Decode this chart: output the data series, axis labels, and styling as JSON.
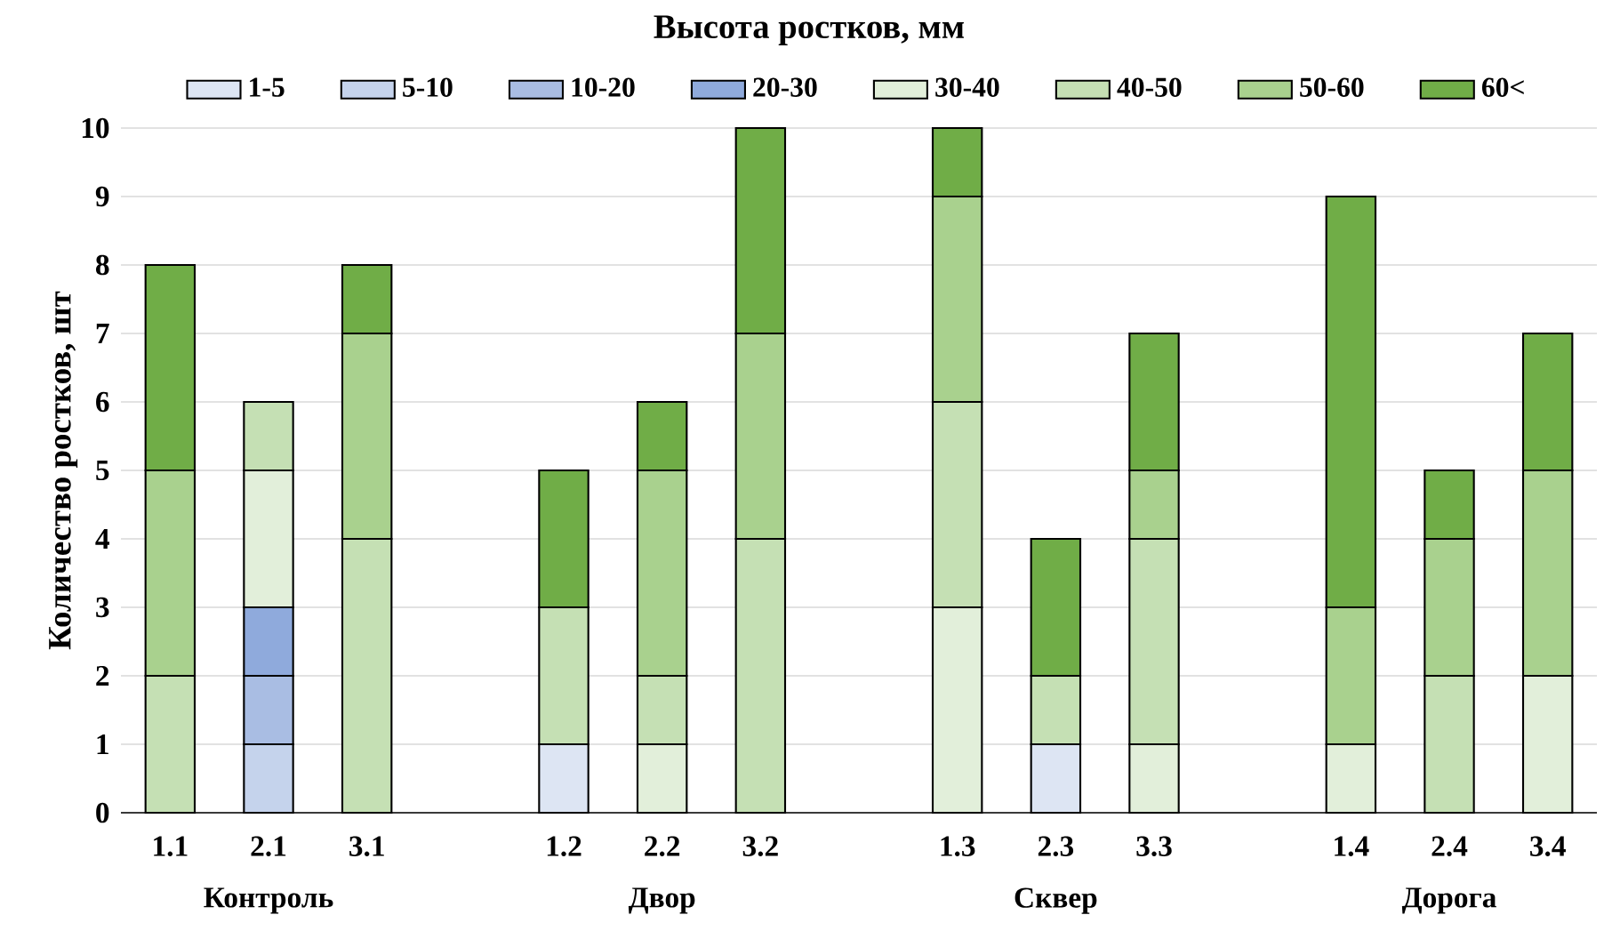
{
  "chart_data": {
    "type": "bar",
    "stacked": true,
    "title": "Высота ростков, мм",
    "ylabel": "Количество ростков, шт",
    "categories": [
      "1.1",
      "2.1",
      "3.1",
      null,
      "1.2",
      "2.2",
      "3.2",
      null,
      "1.3",
      "2.3",
      "3.3",
      null,
      "1.4",
      "2.4",
      "3.4"
    ],
    "series": [
      {
        "name": "1-5",
        "color": "#dde5f3",
        "values": [
          0,
          0,
          0,
          null,
          1,
          0,
          0,
          null,
          0,
          1,
          0,
          null,
          0,
          0,
          0
        ]
      },
      {
        "name": "5-10",
        "color": "#c5d3ec",
        "values": [
          0,
          1,
          0,
          null,
          0,
          0,
          0,
          null,
          0,
          0,
          0,
          null,
          0,
          0,
          0
        ]
      },
      {
        "name": "10-20",
        "color": "#a9bde3",
        "values": [
          0,
          1,
          0,
          null,
          0,
          0,
          0,
          null,
          0,
          0,
          0,
          null,
          0,
          0,
          0
        ]
      },
      {
        "name": "20-30",
        "color": "#8faadc",
        "values": [
          0,
          1,
          0,
          null,
          0,
          0,
          0,
          null,
          0,
          0,
          0,
          null,
          0,
          0,
          0
        ]
      },
      {
        "name": "30-40",
        "color": "#e2efda",
        "values": [
          0,
          2,
          0,
          null,
          0,
          1,
          0,
          null,
          3,
          0,
          1,
          null,
          1,
          0,
          2
        ]
      },
      {
        "name": "40-50",
        "color": "#c5e0b4",
        "values": [
          2,
          1,
          4,
          null,
          2,
          1,
          4,
          null,
          3,
          1,
          3,
          null,
          0,
          2,
          0
        ]
      },
      {
        "name": "50-60",
        "color": "#a9d18e",
        "values": [
          3,
          0,
          3,
          null,
          0,
          3,
          3,
          null,
          3,
          0,
          1,
          null,
          2,
          2,
          3
        ]
      },
      {
        "name": "60<",
        "color": "#70ad47",
        "values": [
          3,
          0,
          1,
          null,
          2,
          1,
          3,
          null,
          1,
          2,
          2,
          null,
          6,
          1,
          2
        ]
      }
    ],
    "annotations": [
      "Контроль",
      "Двор",
      "Сквер",
      "Дорога"
    ],
    "ylim": [
      0,
      10
    ],
    "yticks": [
      0,
      1,
      2,
      3,
      4,
      5,
      6,
      7,
      8,
      9,
      10
    ],
    "grid": "y",
    "legend": "top"
  }
}
